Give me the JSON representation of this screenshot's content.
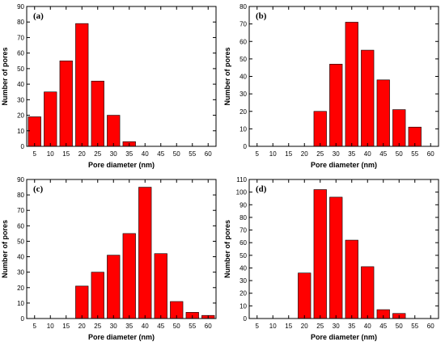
{
  "chart_data": [
    {
      "type": "bar",
      "panel_label": "(a)",
      "xlabel": "Pore diameter (nm)",
      "ylabel": "Number of pores",
      "categories": [
        5,
        10,
        15,
        20,
        25,
        30,
        35,
        40,
        45,
        50,
        55,
        60
      ],
      "values": [
        19,
        35,
        55,
        79,
        42,
        20,
        3,
        0,
        0,
        0,
        0,
        0
      ],
      "xlim": [
        2.5,
        62.5
      ],
      "ylim": [
        0,
        90
      ],
      "yticks": [
        0,
        10,
        20,
        30,
        40,
        50,
        60,
        70,
        80,
        90
      ],
      "bar_color": "#ff0000"
    },
    {
      "type": "bar",
      "panel_label": "(b)",
      "xlabel": "Pore diameter (nm)",
      "ylabel": "Number of pores",
      "categories": [
        5,
        10,
        15,
        20,
        25,
        30,
        35,
        40,
        45,
        50,
        55,
        60
      ],
      "values": [
        0,
        0,
        0,
        0,
        20,
        47,
        71,
        55,
        38,
        21,
        11,
        0
      ],
      "xlim": [
        2.5,
        62.5
      ],
      "ylim": [
        0,
        80
      ],
      "yticks": [
        0,
        10,
        20,
        30,
        40,
        50,
        60,
        70,
        80
      ],
      "bar_color": "#ff0000"
    },
    {
      "type": "bar",
      "panel_label": "(c)",
      "xlabel": "Pore diameter (nm)",
      "ylabel": "Number of pores",
      "categories": [
        5,
        10,
        15,
        20,
        25,
        30,
        35,
        40,
        45,
        50,
        55,
        60
      ],
      "values": [
        0,
        0,
        0,
        21,
        30,
        41,
        55,
        85,
        42,
        11,
        4,
        2
      ],
      "xlim": [
        2.5,
        62.5
      ],
      "ylim": [
        0,
        90
      ],
      "yticks": [
        0,
        10,
        20,
        30,
        40,
        50,
        60,
        70,
        80,
        90
      ],
      "bar_color": "#ff0000"
    },
    {
      "type": "bar",
      "panel_label": "(d)",
      "xlabel": "Pore diameter (nm)",
      "ylabel": "Number of pores",
      "categories": [
        5,
        10,
        15,
        20,
        25,
        30,
        35,
        40,
        45,
        50,
        55,
        60
      ],
      "values": [
        0,
        0,
        0,
        36,
        102,
        96,
        62,
        41,
        7,
        4,
        0,
        0
      ],
      "xlim": [
        2.5,
        62.5
      ],
      "ylim": [
        0,
        110
      ],
      "yticks": [
        0,
        10,
        20,
        30,
        40,
        50,
        60,
        70,
        80,
        90,
        100,
        110
      ],
      "bar_color": "#ff0000"
    }
  ]
}
